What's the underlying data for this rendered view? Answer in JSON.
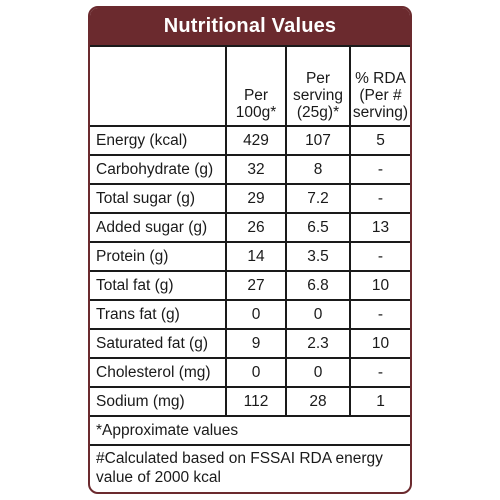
{
  "title": "Nutritional Values",
  "columns": {
    "per100g": "Per 100g*",
    "perServing": "Per serving (25g)*",
    "rda": "% RDA (Per # serving)"
  },
  "rows": [
    {
      "label": "Energy (kcal)",
      "per100g": "429",
      "perServing": "107",
      "rda": "5"
    },
    {
      "label": "Carbohydrate (g)",
      "per100g": "32",
      "perServing": "8",
      "rda": "-"
    },
    {
      "label": "Total sugar (g)",
      "per100g": "29",
      "perServing": "7.2",
      "rda": "-"
    },
    {
      "label": "Added sugar (g)",
      "per100g": "26",
      "perServing": "6.5",
      "rda": "13"
    },
    {
      "label": "Protein (g)",
      "per100g": "14",
      "perServing": "3.5",
      "rda": "-"
    },
    {
      "label": "Total fat (g)",
      "per100g": "27",
      "perServing": "6.8",
      "rda": "10"
    },
    {
      "label": "Trans fat (g)",
      "per100g": "0",
      "perServing": "0",
      "rda": "-"
    },
    {
      "label": "Saturated fat (g)",
      "per100g": "9",
      "perServing": "2.3",
      "rda": "10"
    },
    {
      "label": "Cholesterol (mg)",
      "per100g": "0",
      "perServing": "0",
      "rda": "-"
    },
    {
      "label": "Sodium (mg)",
      "per100g": "112",
      "perServing": "28",
      "rda": "1"
    }
  ],
  "footnotes": {
    "approx": "*Approximate values",
    "rdaNote": "#Calculated based on FSSAI RDA energy value of 2000 kcal"
  }
}
